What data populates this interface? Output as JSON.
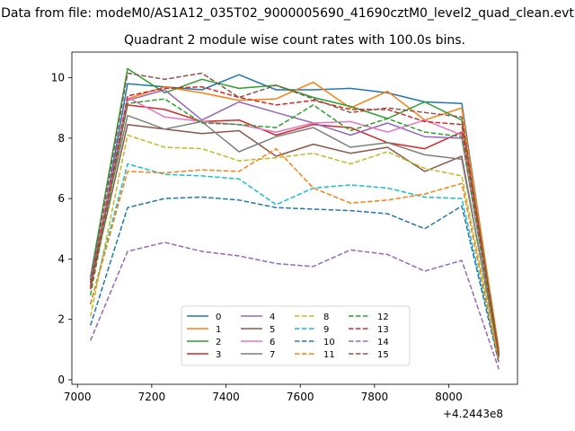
{
  "figure": {
    "suptitle": "Data from file: modeM0/AS1A12_035T02_9000005690_41690cztM0_level2_quad_clean.evt",
    "x_offset_label": "+4.2443e8"
  },
  "chart_data": {
    "type": "line",
    "title": "Quadrant 2 module wise count rates with 100.0s bins.",
    "xlabel": "",
    "ylabel": "",
    "x": [
      7035,
      7135,
      7235,
      7335,
      7435,
      7535,
      7635,
      7735,
      7835,
      7935,
      8035,
      8135
    ],
    "x_ticks": [
      7000,
      7200,
      7400,
      7600,
      7800,
      8000
    ],
    "x_tick_labels": [
      "7000",
      "7200",
      "7400",
      "7600",
      "7800",
      "8000"
    ],
    "xlim": [
      6985,
      8185
    ],
    "y_ticks": [
      0,
      2,
      4,
      6,
      8,
      10
    ],
    "y_tick_labels": [
      "0",
      "2",
      "4",
      "6",
      "8",
      "10"
    ],
    "ylim": [
      -0.15,
      10.85
    ],
    "grid": false,
    "legend_position": "lower-center",
    "legend_columns": 4,
    "series": [
      {
        "name": "0",
        "color": "#1f77b4",
        "dash": "solid",
        "values": [
          3.0,
          9.8,
          9.7,
          9.6,
          10.1,
          9.6,
          9.6,
          9.65,
          9.5,
          9.2,
          9.15,
          0.9
        ]
      },
      {
        "name": "1",
        "color": "#ff7f0e",
        "dash": "solid",
        "values": [
          3.2,
          9.3,
          9.7,
          9.5,
          9.25,
          9.3,
          9.85,
          9.0,
          9.55,
          8.6,
          9.0,
          1.0
        ]
      },
      {
        "name": "2",
        "color": "#2ca02c",
        "dash": "solid",
        "values": [
          3.4,
          10.3,
          9.5,
          9.95,
          9.65,
          9.75,
          9.35,
          9.05,
          8.65,
          9.2,
          8.6,
          0.9
        ]
      },
      {
        "name": "3",
        "color": "#d62728",
        "dash": "solid",
        "values": [
          3.3,
          9.1,
          8.95,
          8.55,
          8.6,
          8.1,
          8.45,
          8.35,
          7.85,
          7.65,
          8.2,
          0.85
        ]
      },
      {
        "name": "4",
        "color": "#9467bd",
        "dash": "solid",
        "values": [
          3.35,
          9.25,
          9.6,
          8.6,
          9.2,
          8.85,
          8.5,
          8.1,
          8.5,
          8.05,
          8.0,
          0.8
        ]
      },
      {
        "name": "5",
        "color": "#8c564b",
        "dash": "solid",
        "values": [
          3.1,
          8.45,
          8.3,
          8.15,
          8.25,
          7.4,
          7.8,
          7.5,
          7.7,
          6.9,
          7.4,
          0.75
        ]
      },
      {
        "name": "6",
        "color": "#e377c2",
        "dash": "solid",
        "values": [
          3.2,
          9.35,
          8.7,
          8.55,
          8.45,
          8.2,
          8.5,
          8.55,
          8.2,
          8.6,
          8.1,
          0.85
        ]
      },
      {
        "name": "7",
        "color": "#7f7f7f",
        "dash": "solid",
        "values": [
          3.3,
          8.75,
          8.3,
          8.55,
          7.55,
          8.05,
          8.35,
          7.7,
          7.85,
          7.45,
          7.3,
          0.8
        ]
      },
      {
        "name": "8",
        "color": "#bcbd22",
        "dash": "dashed",
        "values": [
          2.1,
          8.1,
          7.7,
          7.65,
          7.25,
          7.35,
          7.5,
          7.15,
          7.55,
          7.0,
          6.75,
          0.7
        ]
      },
      {
        "name": "9",
        "color": "#17becf",
        "dash": "dashed",
        "values": [
          2.5,
          7.15,
          6.8,
          6.75,
          6.65,
          5.8,
          6.35,
          6.45,
          6.35,
          6.05,
          6.0,
          0.6
        ]
      },
      {
        "name": "10",
        "color": "#1f77b4",
        "dash": "dashed",
        "values": [
          1.8,
          5.7,
          6.0,
          6.05,
          5.95,
          5.7,
          5.65,
          5.6,
          5.5,
          5.0,
          5.75,
          0.55
        ]
      },
      {
        "name": "11",
        "color": "#ff7f0e",
        "dash": "dashed",
        "values": [
          2.5,
          6.9,
          6.85,
          6.95,
          6.9,
          7.65,
          6.35,
          5.85,
          5.95,
          6.15,
          6.5,
          0.6
        ]
      },
      {
        "name": "12",
        "color": "#2ca02c",
        "dash": "dashed",
        "values": [
          2.8,
          9.15,
          9.3,
          8.5,
          8.45,
          8.35,
          9.1,
          8.25,
          8.65,
          8.2,
          8.05,
          0.75
        ]
      },
      {
        "name": "13",
        "color": "#d62728",
        "dash": "dashed",
        "values": [
          3.0,
          9.4,
          9.65,
          9.7,
          9.35,
          9.1,
          9.25,
          8.95,
          8.95,
          8.55,
          8.45,
          0.8
        ]
      },
      {
        "name": "14",
        "color": "#9467bd",
        "dash": "dashed",
        "values": [
          1.3,
          4.25,
          4.55,
          4.25,
          4.1,
          3.85,
          3.75,
          4.3,
          4.15,
          3.6,
          3.95,
          0.35
        ]
      },
      {
        "name": "15",
        "color": "#8c564b",
        "dash": "dashed",
        "values": [
          3.2,
          10.15,
          9.95,
          10.15,
          9.35,
          9.75,
          9.3,
          8.85,
          9.0,
          8.85,
          8.7,
          0.8
        ]
      }
    ]
  }
}
